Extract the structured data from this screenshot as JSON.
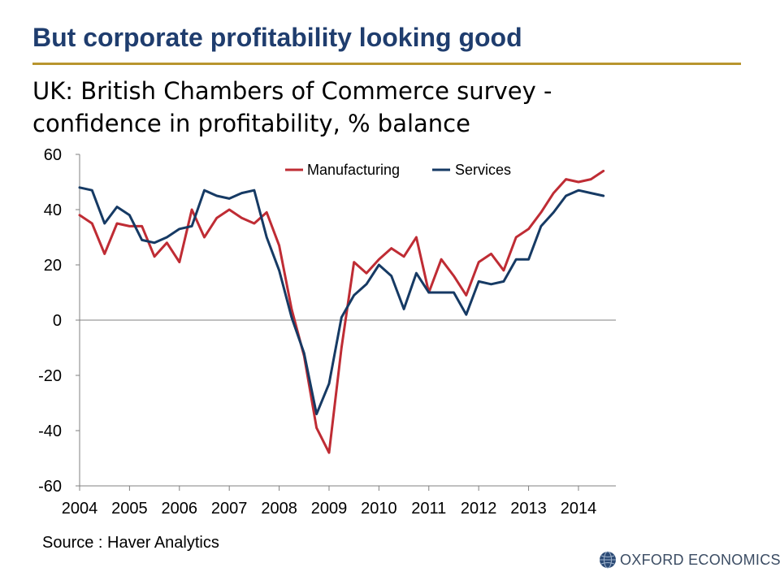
{
  "slide": {
    "title": "But corporate profitability looking good"
  },
  "chart_title": {
    "line1": "UK: British Chambers of Commerce survey -",
    "line2": "confidence in profitability, % balance"
  },
  "source": "Source : Haver Analytics",
  "logo": {
    "text": "OXFORD ECONOMICS"
  },
  "colors": {
    "manufacturing": "#bf2c34",
    "services": "#163a64",
    "title": "#1f3d6e",
    "rule": "#b8952e",
    "axis": "#808080"
  },
  "chart_data": {
    "type": "line",
    "title": "UK: British Chambers of Commerce survey - confidence in profitability, % balance",
    "xlabel": "",
    "ylabel": "",
    "xlim": [
      2004.0,
      2014.75
    ],
    "ylim": [
      -60,
      60
    ],
    "yticks": [
      60,
      40,
      20,
      0,
      -20,
      -40,
      -60
    ],
    "xticks": [
      2004,
      2005,
      2006,
      2007,
      2008,
      2009,
      2010,
      2011,
      2012,
      2013,
      2014
    ],
    "grid": false,
    "legend_position": "top-center",
    "x": [
      2004.0,
      2004.25,
      2004.5,
      2004.75,
      2005.0,
      2005.25,
      2005.5,
      2005.75,
      2006.0,
      2006.25,
      2006.5,
      2006.75,
      2007.0,
      2007.25,
      2007.5,
      2007.75,
      2008.0,
      2008.25,
      2008.5,
      2008.75,
      2009.0,
      2009.25,
      2009.5,
      2009.75,
      2010.0,
      2010.25,
      2010.5,
      2010.75,
      2011.0,
      2011.25,
      2011.5,
      2011.75,
      2012.0,
      2012.25,
      2012.5,
      2012.75,
      2013.0,
      2013.25,
      2013.5,
      2013.75,
      2014.0,
      2014.25,
      2014.5
    ],
    "series": [
      {
        "name": "Manufacturing",
        "values": [
          38,
          35,
          24,
          35,
          34,
          34,
          23,
          28,
          21,
          40,
          30,
          37,
          40,
          37,
          35,
          39,
          27,
          4,
          -13,
          -39,
          -48,
          -10,
          21,
          17,
          22,
          26,
          23,
          30,
          10,
          22,
          16,
          9,
          21,
          24,
          18,
          30,
          33,
          39,
          46,
          51,
          50,
          51,
          54
        ]
      },
      {
        "name": "Services",
        "values": [
          48,
          47,
          35,
          41,
          38,
          29,
          28,
          30,
          33,
          34,
          47,
          45,
          44,
          46,
          47,
          30,
          18,
          1,
          -12,
          -34,
          -23,
          1,
          9,
          13,
          20,
          16,
          4,
          17,
          10,
          10,
          10,
          2,
          14,
          13,
          14,
          22,
          22,
          34,
          39,
          45,
          47,
          46,
          45
        ]
      }
    ]
  }
}
